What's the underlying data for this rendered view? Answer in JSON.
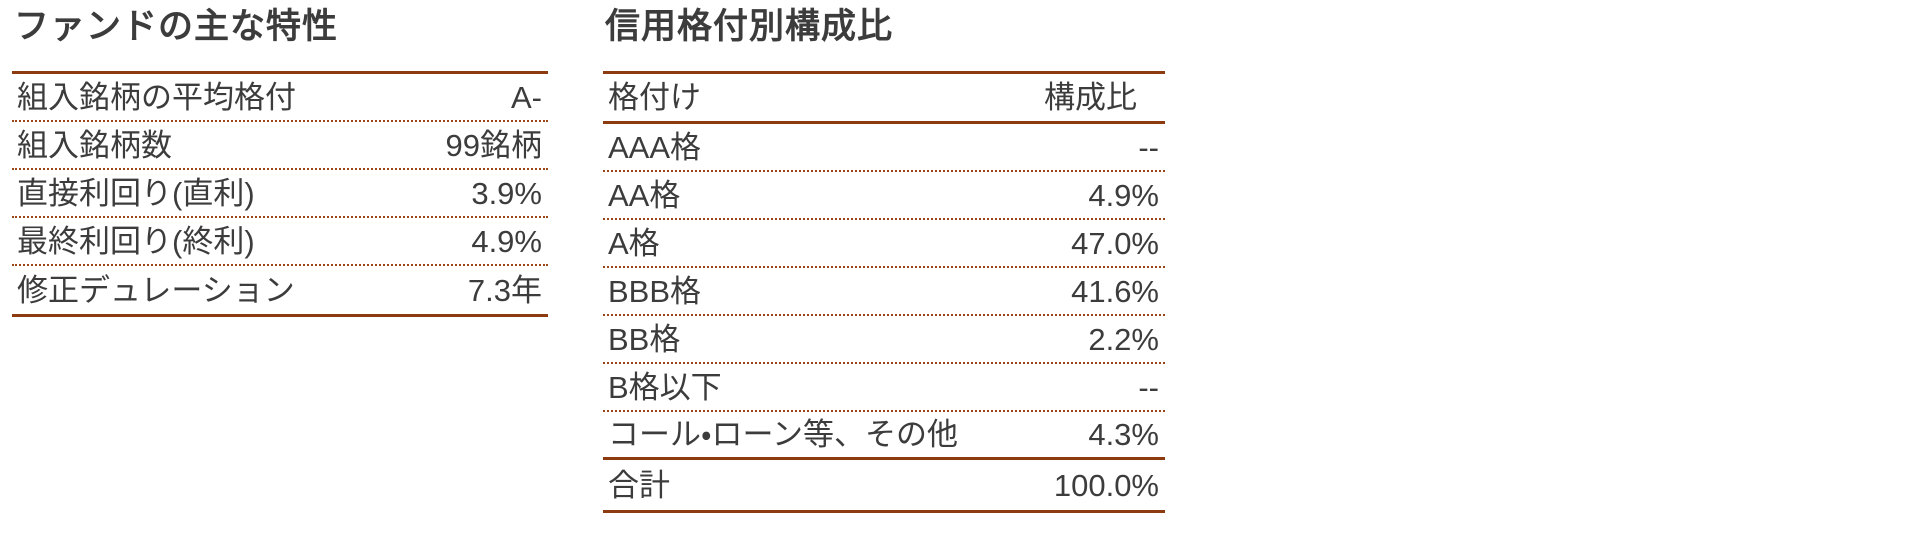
{
  "colors": {
    "accent_line": "#8C3A10",
    "dotted_line": "#9B4617",
    "text": "#3C3C3C",
    "background": "#FFFFFF"
  },
  "fund_characteristics": {
    "title": "ファンドの主な特性",
    "rows": [
      {
        "label": "組入銘柄の平均格付",
        "value": "A-"
      },
      {
        "label": "組入銘柄数",
        "value": "99銘柄"
      },
      {
        "label": "直接利回り(直利)",
        "value": "3.9%"
      },
      {
        "label": "最終利回り(終利)",
        "value": "4.9%"
      },
      {
        "label": "修正デュレーション",
        "value": "7.3年"
      }
    ]
  },
  "credit_rating_composition": {
    "title": "信用格付別構成比",
    "header": {
      "rating": "格付け",
      "ratio": "構成比"
    },
    "rows": [
      {
        "label": "AAA格",
        "value": "--"
      },
      {
        "label": "AA格",
        "value": "4.9%"
      },
      {
        "label": "A格",
        "value": "47.0%"
      },
      {
        "label": "BBB格",
        "value": "41.6%"
      },
      {
        "label": "BB格",
        "value": "2.2%"
      },
      {
        "label": "B格以下",
        "value": "--"
      },
      {
        "label": "コール・ローン等、その他",
        "value": "4.3%"
      }
    ],
    "total": {
      "label": "合計",
      "value": "100.0%"
    }
  }
}
